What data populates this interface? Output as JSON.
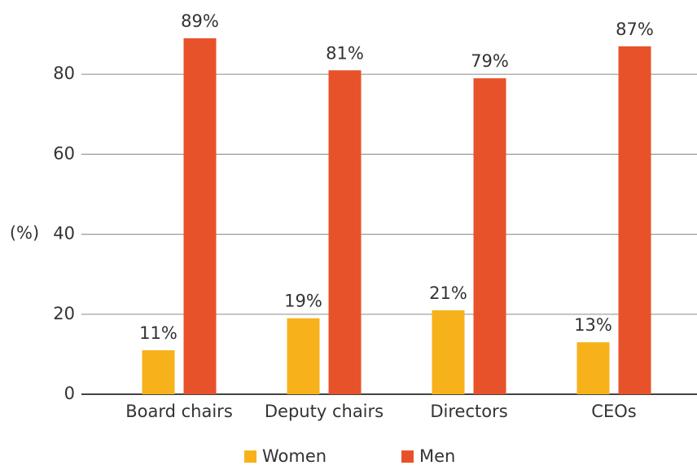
{
  "chart_data": {
    "type": "bar",
    "y_label": "(%)",
    "categories": [
      "Board chairs",
      "Deputy chairs",
      "Directors",
      "CEOs"
    ],
    "series": [
      {
        "name": "Women",
        "color": "#f7b21b",
        "values": [
          11,
          19,
          21,
          13
        ],
        "value_labels": [
          "11%",
          "19%",
          "21%",
          "13%"
        ]
      },
      {
        "name": "Men",
        "color": "#e8522a",
        "values": [
          89,
          81,
          79,
          87
        ],
        "value_labels": [
          "89%",
          "81%",
          "79%",
          "87%"
        ]
      }
    ],
    "ylim": [
      0,
      95
    ],
    "yticks": [
      0,
      20,
      40,
      60,
      80
    ],
    "grid": true,
    "legend": "bottom"
  }
}
